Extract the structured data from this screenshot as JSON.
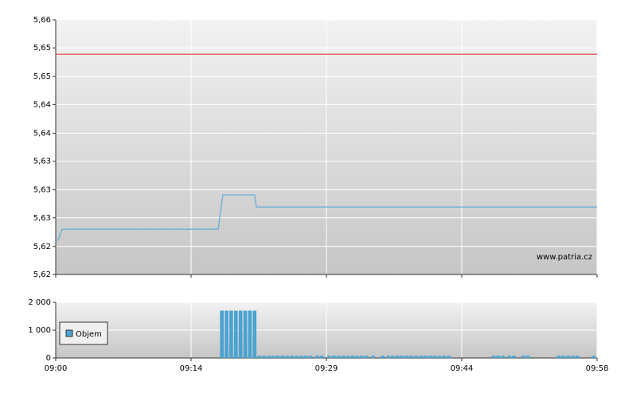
{
  "chart_data": [
    {
      "type": "line",
      "xlim": [
        0,
        58
      ],
      "xticks": [
        0,
        14.5,
        29,
        43.5,
        58
      ],
      "ylim": [
        5.62,
        5.66
      ],
      "yticks": [
        {
          "value": 5.62,
          "label": "5,62"
        },
        {
          "value": 5.6244,
          "label": "5,62"
        },
        {
          "value": 5.6289,
          "label": "5,63"
        },
        {
          "value": 5.6333,
          "label": "5,63"
        },
        {
          "value": 5.6378,
          "label": "5,63"
        },
        {
          "value": 5.6422,
          "label": "5,64"
        },
        {
          "value": 5.6467,
          "label": "5,64"
        },
        {
          "value": 5.6511,
          "label": "5,65"
        },
        {
          "value": 5.6556,
          "label": "5,65"
        },
        {
          "value": 5.66,
          "label": "5,66"
        }
      ],
      "grid": true,
      "reference_line": {
        "value": 5.6546,
        "color": "#e03c3c"
      },
      "annotation": "www.patria.cz",
      "series": [
        {
          "color": "#6aaed6",
          "x": [
            0,
            0.26,
            0.68,
            17.4,
            17.9,
            21.3,
            21.5,
            58
          ],
          "values": [
            5.6254,
            5.6254,
            5.6271,
            5.6271,
            5.6325,
            5.6325,
            5.6306,
            5.6306
          ]
        }
      ]
    },
    {
      "type": "bar",
      "xlim": [
        0,
        58
      ],
      "xticks": [
        {
          "value": 0,
          "label": "09:00"
        },
        {
          "value": 14.5,
          "label": "09:14"
        },
        {
          "value": 29,
          "label": "09:29"
        },
        {
          "value": 43.5,
          "label": "09:44"
        },
        {
          "value": 58,
          "label": "09:58"
        }
      ],
      "ylim": [
        0,
        2000
      ],
      "yticks": [
        0,
        {
          "value": 1000,
          "label": "1 000"
        },
        {
          "value": 2000,
          "label": "2 000"
        }
      ],
      "grid": true,
      "legend": "upper left",
      "series": [
        {
          "name": "Objem",
          "color": "#4aa3d0",
          "x": [
            17.8,
            18.3,
            18.8,
            19.3,
            19.8,
            20.3,
            20.8,
            21.3,
            21.8,
            22.3,
            22.8,
            23.3,
            23.8,
            24.3,
            24.8,
            25.3,
            25.8,
            26.3,
            26.8,
            27.3,
            28.0,
            28.5,
            29.3,
            29.8,
            30.3,
            30.8,
            31.3,
            31.8,
            32.3,
            32.8,
            33.3,
            34.0,
            35.0,
            35.6,
            36.1,
            36.6,
            37.1,
            37.6,
            38.1,
            38.6,
            39.1,
            39.6,
            40.1,
            40.6,
            41.1,
            41.6,
            42.1,
            46.9,
            47.4,
            47.9,
            48.6,
            49.1,
            50.1,
            50.6,
            53.9,
            54.4,
            54.9,
            55.4,
            55.9,
            57.6
          ],
          "values": [
            1700,
            1700,
            1700,
            1700,
            1700,
            1700,
            1700,
            1700,
            80,
            80,
            80,
            80,
            80,
            80,
            80,
            80,
            80,
            80,
            80,
            80,
            80,
            80,
            80,
            80,
            80,
            80,
            80,
            80,
            80,
            80,
            80,
            80,
            80,
            80,
            80,
            80,
            80,
            80,
            80,
            80,
            80,
            80,
            80,
            80,
            80,
            80,
            80,
            80,
            80,
            80,
            80,
            80,
            80,
            80,
            80,
            80,
            80,
            80,
            80,
            80
          ]
        }
      ]
    }
  ]
}
